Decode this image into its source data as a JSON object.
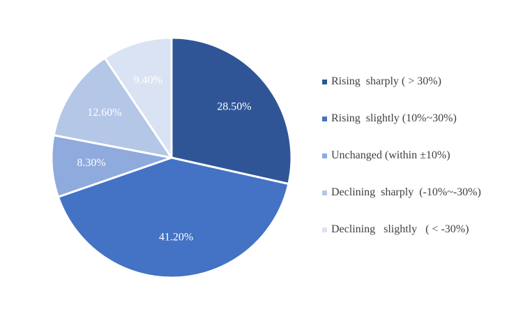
{
  "chart_data": {
    "type": "pie",
    "start_angle_deg": 0,
    "direction": "clockwise",
    "slices": [
      {
        "label": "Rising  sharply ( > 30%)",
        "value": 28.5,
        "value_label": "28.50%",
        "color": "#2F5597",
        "label_color": "#FFFFFF"
      },
      {
        "label": "Rising  slightly (10%~30%)",
        "value": 41.2,
        "value_label": "41.20%",
        "color": "#4472C4",
        "label_color": "#FFFFFF"
      },
      {
        "label": "Unchanged (within ±10%)",
        "value": 8.3,
        "value_label": "8.30%",
        "color": "#8FAADC",
        "label_color": "#FFFFFF"
      },
      {
        "label": "Declining  sharply  (-10%~-30%)",
        "value": 12.6,
        "value_label": "12.60%",
        "color": "#B4C7E7",
        "label_color": "#FFFFFF"
      },
      {
        "label": "Declining   slightly   ( < -30%)",
        "value": 9.4,
        "value_label": "9.40%",
        "color": "#DAE3F3",
        "label_color": "#FFFFFF"
      }
    ],
    "legend_position": "right",
    "slice_border_color": "#FFFFFF"
  }
}
